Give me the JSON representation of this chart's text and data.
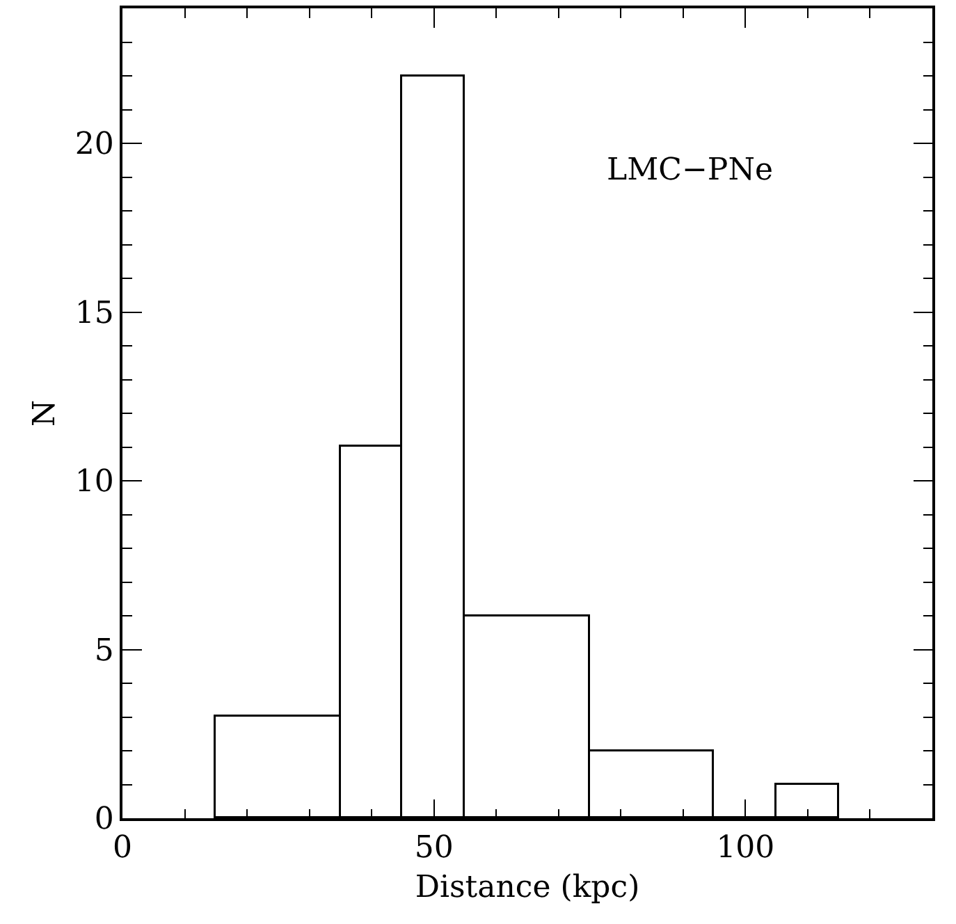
{
  "chart_data": {
    "type": "histogram",
    "xlabel": "Distance (kpc)",
    "ylabel": "N",
    "annotations": [
      "LMC−PNe"
    ],
    "bins": [
      15,
      35,
      45,
      55,
      75,
      95,
      105,
      115
    ],
    "values": [
      3,
      11,
      22,
      6,
      2,
      0,
      1
    ],
    "color": "#000000",
    "xlim": [
      0,
      130
    ],
    "xticks": [
      0,
      50,
      100
    ],
    "ylim": [
      0,
      24
    ],
    "yticks": [
      0,
      5,
      10,
      15,
      20
    ]
  }
}
